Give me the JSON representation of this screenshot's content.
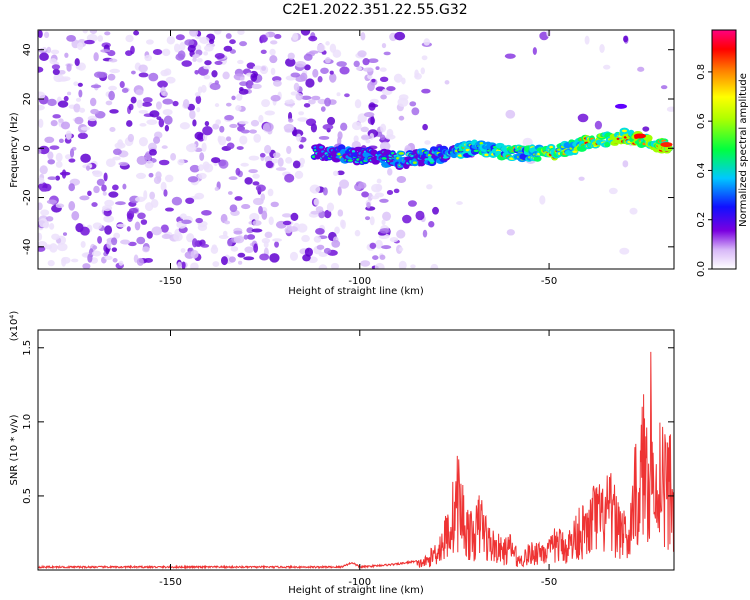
{
  "title": "C2E1.2022.351.22.55.G32",
  "chart_data": [
    {
      "type": "heatmap",
      "title": "C2E1.2022.351.22.55.G32",
      "xlabel": "Height of straight line (km)",
      "ylabel": "Frequency (Hz)",
      "xlim": [
        -185,
        -17
      ],
      "ylim": [
        -49,
        48
      ],
      "x_ticks": [
        -150,
        -100,
        -50
      ],
      "y_ticks": [
        -40,
        -20,
        0,
        20,
        40
      ],
      "colorbar": {
        "label": "Normalized spectral amplitude",
        "range": [
          0,
          0.97
        ],
        "ticks": [
          0.0,
          0.2,
          0.4,
          0.6,
          0.8
        ],
        "colormap": "rainbow (white-purple-blue-cyan-green-yellow-red-magenta)"
      },
      "ridge": {
        "description": "Main spectral ridge (approx. center frequency vs height)",
        "x": [
          -110,
          -100,
          -90,
          -80,
          -70,
          -60,
          -50,
          -40,
          -30,
          -20
        ],
        "freq": [
          -1,
          -3,
          -5,
          -3,
          0,
          -2,
          -2,
          2,
          5,
          1
        ]
      }
    },
    {
      "type": "line",
      "xlabel": "Height of straight line (km)",
      "ylabel": "SNR (10 * v/v)",
      "yscale_label": "(x10⁴)",
      "xlim": [
        -185,
        -17
      ],
      "ylim": [
        0,
        1.62
      ],
      "x_ticks": [
        -150,
        -100,
        -50
      ],
      "y_ticks": [
        0.5,
        1.0,
        1.5
      ],
      "series": [
        {
          "color": "#ee3333",
          "x": [
            -185,
            -160,
            -140,
            -120,
            -105,
            -102,
            -100,
            -95,
            -90,
            -85,
            -82,
            -78,
            -76,
            -74,
            -72,
            -70,
            -68,
            -66,
            -64,
            -62,
            -60,
            -58,
            -55,
            -52,
            -50,
            -48,
            -46,
            -44,
            -42,
            -40,
            -38,
            -36,
            -34,
            -32,
            -30,
            -29,
            -28,
            -26,
            -25,
            -24,
            -23,
            -22,
            -21,
            -20,
            -19,
            -18,
            -17
          ],
          "values": [
            0.02,
            0.02,
            0.02,
            0.02,
            0.02,
            0.05,
            0.02,
            0.03,
            0.04,
            0.06,
            0.1,
            0.3,
            0.5,
            0.8,
            0.45,
            0.35,
            0.55,
            0.3,
            0.25,
            0.2,
            0.25,
            0.1,
            0.18,
            0.22,
            0.2,
            0.3,
            0.25,
            0.3,
            0.45,
            0.4,
            0.6,
            0.55,
            0.65,
            0.5,
            0.45,
            0.2,
            0.75,
            0.9,
            1.2,
            1.05,
            1.62,
            0.55,
            1.15,
            1.1,
            0.85,
            0.95,
            0.6
          ]
        }
      ]
    }
  ]
}
